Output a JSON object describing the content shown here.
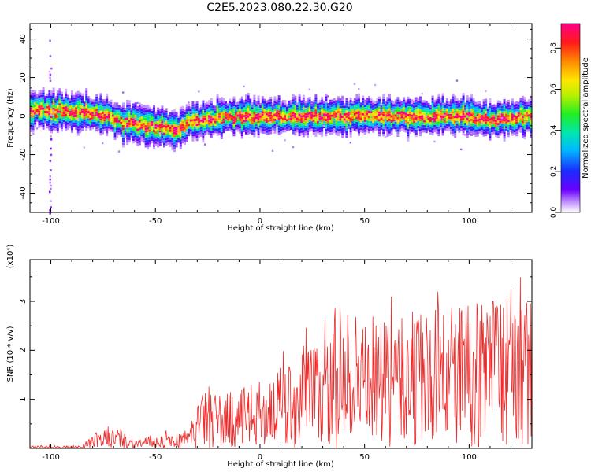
{
  "title": "C2E5.2023.080.22.30.G20",
  "chart_data": [
    {
      "type": "heatmap",
      "xlabel": "Height of straight line (km)",
      "ylabel": "Frequency (Hz)",
      "xlim": [
        -110,
        130
      ],
      "ylim": [
        -50,
        48
      ],
      "x_ticks": [
        -100,
        -50,
        0,
        50,
        100
      ],
      "y_ticks": [
        -40,
        -20,
        0,
        20,
        40
      ],
      "colorbar": {
        "label": "Normalized spectral amplitude",
        "range": [
          0.0,
          0.92
        ],
        "ticks": [
          "0.0",
          "0.2",
          "0.4",
          "0.6",
          "0.8"
        ]
      },
      "ridge": {
        "x": [
          -110,
          -95,
          -85,
          -75,
          -65,
          -55,
          -45,
          -40,
          -35,
          -30,
          -20,
          -10,
          0,
          20,
          50,
          80,
          100,
          110,
          120,
          130
        ],
        "y": [
          3,
          3,
          2,
          0,
          -3,
          -5,
          -6,
          -8,
          -3,
          -2,
          -1,
          0,
          0,
          0,
          0,
          0,
          0,
          -2,
          -1,
          0
        ]
      }
    },
    {
      "type": "line",
      "xlabel": "Height of straight line (km)",
      "ylabel": "SNR (10 * v/v)",
      "y_multiplier": "(x10⁴)",
      "xlim": [
        -110,
        130
      ],
      "ylim": [
        0,
        3.85
      ],
      "x_ticks": [
        -100,
        -50,
        0,
        50,
        100
      ],
      "y_ticks": [
        1,
        2,
        3
      ],
      "series": [
        {
          "color": "#ee2a2a",
          "envelope": {
            "x": [
              -110,
              -85,
              -80,
              -70,
              -60,
              -45,
              -35,
              -30,
              -25,
              -20,
              -10,
              0,
              10,
              20,
              40,
              60,
              80,
              100,
              120,
              130
            ],
            "y": [
              0.05,
              0.05,
              0.3,
              0.45,
              0.2,
              0.3,
              0.3,
              0.9,
              1.3,
              1.1,
              1.2,
              1.4,
              1.6,
              2.0,
              2.4,
              2.6,
              2.8,
              3.0,
              3.3,
              3.0
            ]
          }
        }
      ]
    }
  ]
}
